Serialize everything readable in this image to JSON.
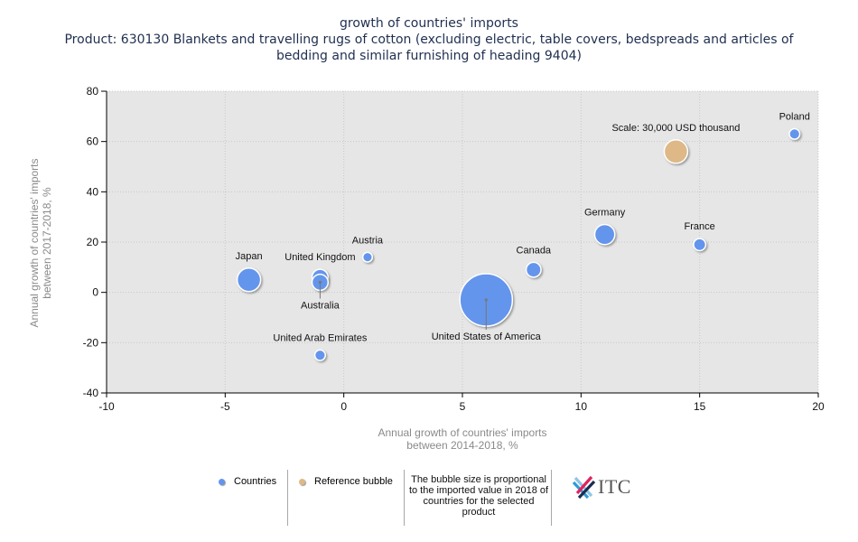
{
  "title": {
    "line1": "growth of countries' imports",
    "line2": "Product: 630130 Blankets and travelling rugs of cotton (excluding electric, table covers, bedspreads and articles of",
    "line3": "bedding and similar furnishing of heading 9404)"
  },
  "chart_data": {
    "type": "scatter",
    "subtype": "bubble",
    "title": "growth of countries' imports",
    "subtitle": "Product: 630130 Blankets and travelling rugs of cotton (excluding electric, table covers, bedspreads and articles of bedding and similar furnishing of heading 9404)",
    "xlabel": "Annual growth of countries' imports between 2014-2018, %",
    "ylabel": "Annual growth of countries' imports between 2017-2018, %",
    "xlim": [
      -10,
      20
    ],
    "ylim": [
      -40,
      80
    ],
    "x_ticks": [
      -10,
      -5,
      0,
      5,
      10,
      15,
      20
    ],
    "y_ticks": [
      -40,
      -20,
      0,
      20,
      40,
      60,
      80
    ],
    "grid": true,
    "legend_position": "bottom",
    "size_note": "The bubble size is proportional to the imported value in 2018 of countries for the selected product",
    "series": [
      {
        "name": "Countries",
        "color": "#6495ed",
        "points": [
          {
            "label": "United States of America",
            "x": 6,
            "y": -3,
            "size": 150000,
            "label_pos": "below-leader"
          },
          {
            "label": "Japan",
            "x": -4,
            "y": 5,
            "size": 30000,
            "label_pos": "above"
          },
          {
            "label": "Germany",
            "x": 11,
            "y": 23,
            "size": 22000,
            "label_pos": "above"
          },
          {
            "label": "United Kingdom",
            "x": -1,
            "y": 6,
            "size": 14000,
            "label_pos": "above"
          },
          {
            "label": "Australia",
            "x": -1,
            "y": 4,
            "size": 14000,
            "label_pos": "below-leader"
          },
          {
            "label": "Canada",
            "x": 8,
            "y": 9,
            "size": 12000,
            "label_pos": "above"
          },
          {
            "label": "France",
            "x": 15,
            "y": 19,
            "size": 8000,
            "label_pos": "above"
          },
          {
            "label": "Poland",
            "x": 19,
            "y": 63,
            "size": 6000,
            "label_pos": "above"
          },
          {
            "label": "United Arab Emirates",
            "x": -1,
            "y": -25,
            "size": 6000,
            "label_pos": "above"
          },
          {
            "label": "Austria",
            "x": 1,
            "y": 14,
            "size": 5000,
            "label_pos": "above"
          }
        ]
      },
      {
        "name": "Reference bubble",
        "color": "#deb887",
        "points": [
          {
            "label": "Scale: 30,000 USD thousand",
            "x": 14,
            "y": 56,
            "size": 30000,
            "label_pos": "above"
          }
        ]
      }
    ]
  },
  "legend": {
    "countries": "Countries",
    "reference": "Reference bubble",
    "note": "The bubble size is proportional to the imported value in 2018 of countries for the selected product",
    "logo_text": "ITC"
  }
}
